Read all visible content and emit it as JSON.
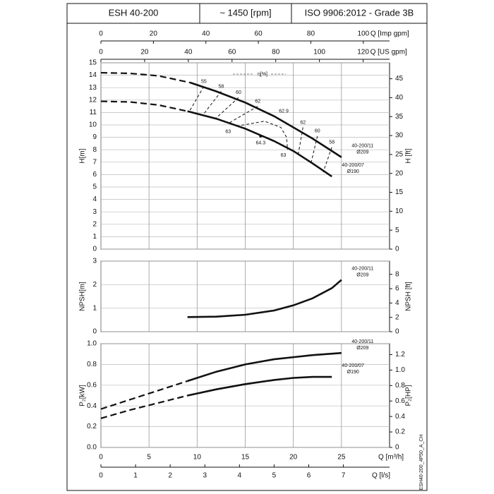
{
  "header": {
    "cells": [
      "ESH 40-200",
      "~ 1450 [rpm]",
      "ISO 9906:2012 - Grade 3B"
    ]
  },
  "footnote": "ESH40-200_4P50_A_CH",
  "chart_data": [
    {
      "type": "line",
      "ylabel": "H[m]",
      "ylim": [
        0,
        15
      ],
      "yticks": [
        0,
        1,
        2,
        3,
        4,
        5,
        6,
        7,
        8,
        9,
        10,
        11,
        12,
        13,
        14,
        15
      ],
      "y2label": "H [ft]",
      "y2lim": [
        0,
        49.21
      ],
      "y2ticks": [
        0,
        5,
        10,
        15,
        20,
        25,
        30,
        35,
        40,
        45
      ],
      "xlim": [
        0,
        30
      ],
      "grid": true,
      "top_axes": [
        {
          "label": "Q [Imp gpm]",
          "lim": [
            0,
            110.0
          ],
          "ticks": [
            0,
            20,
            40,
            60,
            80,
            100
          ]
        },
        {
          "label": "Q [US gpm]",
          "lim": [
            0,
            132.09
          ],
          "ticks": [
            0,
            20,
            40,
            60,
            80,
            100,
            120
          ]
        }
      ],
      "series": [
        {
          "style": "dashed",
          "color": "#111",
          "x": [
            0,
            3,
            6,
            9.3
          ],
          "values": [
            14.2,
            14.15,
            13.95,
            13.4
          ]
        },
        {
          "name": "40-200/11",
          "diameter": "Ø209",
          "style": "solid",
          "color": "#111",
          "x": [
            9.3,
            12,
            15,
            18,
            20,
            22,
            25
          ],
          "values": [
            13.4,
            12.7,
            11.8,
            10.7,
            9.8,
            8.9,
            7.4
          ]
        },
        {
          "style": "dashed",
          "color": "#111",
          "x": [
            0,
            3,
            6,
            9
          ],
          "values": [
            11.9,
            11.85,
            11.6,
            11.1
          ]
        },
        {
          "name": "40-200/07",
          "diameter": "Ø190",
          "style": "solid",
          "color": "#111",
          "x": [
            9,
            12,
            15,
            18,
            20,
            22,
            24
          ],
          "values": [
            11.1,
            10.5,
            9.7,
            8.7,
            7.9,
            6.9,
            5.85
          ]
        }
      ],
      "efficiency_label": "η[%]",
      "efficiency_contours": [
        {
          "value": 55,
          "x": [
            10.7,
            9.2
          ],
          "y": [
            13.1,
            11.1
          ]
        },
        {
          "value": 58,
          "x": [
            12.5,
            10.6
          ],
          "y": [
            12.7,
            10.8
          ]
        },
        {
          "value": 60,
          "x": [
            14.3,
            11.9
          ],
          "y": [
            12.2,
            10.5
          ]
        },
        {
          "value": 62,
          "x": [
            16.3,
            13.2
          ],
          "y": [
            11.5,
            10.1
          ]
        },
        {
          "value": 63,
          "x": [
            14.1,
            17.0,
            18.7,
            19.3,
            19.4
          ],
          "y": [
            9.9,
            10.3,
            9.8,
            9.0,
            8.0
          ]
        },
        {
          "value": 64.3,
          "x": [
            16.6
          ],
          "y": [
            9.1
          ],
          "marker": true
        },
        {
          "value": 62.9,
          "x": [
            19.0
          ],
          "y": [
            10.7
          ]
        },
        {
          "value": 62,
          "x": [
            21.0,
            20.5
          ],
          "y": [
            9.8,
            7.6
          ]
        },
        {
          "value": 60,
          "x": [
            22.5,
            21.8
          ],
          "y": [
            9.1,
            6.8
          ]
        },
        {
          "value": 58,
          "x": [
            24.0,
            23.1
          ],
          "y": [
            8.2,
            6.2
          ]
        }
      ]
    },
    {
      "type": "line",
      "ylabel": "NPSH[m]",
      "ylim": [
        0,
        3
      ],
      "yticks": [
        0,
        1,
        2,
        3
      ],
      "y2label": "NPSH [ft]",
      "y2lim": [
        0,
        9.84
      ],
      "y2ticks": [
        0,
        2,
        4,
        6,
        8
      ],
      "xlim": [
        0,
        30
      ],
      "grid": true,
      "series": [
        {
          "name": "40-200/11",
          "diameter": "Ø209",
          "style": "solid",
          "color": "#111",
          "x": [
            9,
            12,
            15,
            18,
            20,
            22,
            24,
            25
          ],
          "values": [
            0.62,
            0.64,
            0.72,
            0.9,
            1.12,
            1.42,
            1.85,
            2.2
          ]
        }
      ]
    },
    {
      "type": "line",
      "ylabel": "P₂[kW]",
      "ylim": [
        0,
        1
      ],
      "yticks": [
        {
          "value": 0,
          "label": "0.0"
        },
        0.2,
        0.4,
        0.6,
        0.8,
        {
          "value": 1,
          "label": "1.0"
        }
      ],
      "y2label": "P₂[HP]",
      "y2lim": [
        0,
        1.341
      ],
      "y2ticks": [
        0,
        0.2,
        0.4,
        0.6,
        0.8,
        {
          "value": 1,
          "label": "1.0"
        },
        1.2
      ],
      "xlim": [
        0,
        30
      ],
      "xticks": [
        0,
        5,
        10,
        15,
        20,
        25
      ],
      "xlabel": "Q [m³/h]",
      "grid": true,
      "bottom_axis": {
        "label": "Q [l/s]",
        "lim": [
          0,
          8.333
        ],
        "ticks": [
          0,
          1,
          2,
          3,
          4,
          5,
          6,
          7
        ]
      },
      "series": [
        {
          "style": "dashed",
          "color": "#111",
          "x": [
            0,
            3,
            6,
            9
          ],
          "values": [
            0.37,
            0.46,
            0.55,
            0.64
          ]
        },
        {
          "name": "40-200/11",
          "diameter": "Ø209",
          "style": "solid",
          "color": "#111",
          "x": [
            9,
            12,
            15,
            18,
            20,
            22,
            25
          ],
          "values": [
            0.64,
            0.73,
            0.8,
            0.85,
            0.87,
            0.89,
            0.91
          ]
        },
        {
          "style": "dashed",
          "color": "#111",
          "x": [
            0,
            3,
            6,
            9
          ],
          "values": [
            0.28,
            0.36,
            0.43,
            0.5
          ]
        },
        {
          "name": "40-200/07",
          "diameter": "Ø190",
          "style": "solid",
          "color": "#111",
          "x": [
            9,
            12,
            15,
            18,
            20,
            22,
            24
          ],
          "values": [
            0.5,
            0.56,
            0.61,
            0.65,
            0.67,
            0.68,
            0.68
          ]
        }
      ]
    }
  ]
}
